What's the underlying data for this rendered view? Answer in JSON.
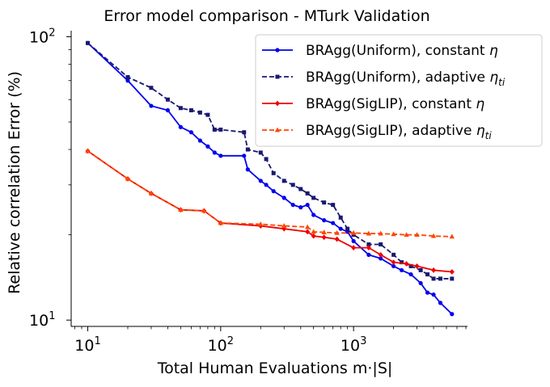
{
  "chart_data": {
    "type": "line",
    "title": "Error model comparison - MTurk Validation",
    "xlabel": "Total Human Evaluations m·|S|",
    "ylabel": "Relative correlation Error (%)",
    "xscale": "log",
    "yscale": "log",
    "xlim": [
      7.5,
      7200
    ],
    "ylim": [
      9.5,
      105
    ],
    "xticks": [
      {
        "value": 10,
        "base": "10",
        "exp": "1"
      },
      {
        "value": 100,
        "base": "10",
        "exp": "2"
      },
      {
        "value": 1000,
        "base": "10",
        "exp": "3"
      }
    ],
    "yticks": [
      {
        "value": 10,
        "base": "10",
        "exp": "1"
      },
      {
        "value": 100,
        "base": "10",
        "exp": "2"
      }
    ],
    "legend_position": "top-right",
    "series": [
      {
        "name_main": "BRAgg(Uniform), constant ",
        "name_math": "η",
        "name_sub": "",
        "color": "#0000ee",
        "dash": "solid",
        "marker": "circle",
        "x": [
          10,
          20,
          30,
          40,
          50,
          60,
          70,
          80,
          90,
          100,
          150,
          160,
          200,
          220,
          250,
          300,
          350,
          400,
          450,
          500,
          600,
          700,
          800,
          900,
          1000,
          1300,
          1600,
          2000,
          2300,
          2700,
          3200,
          3600,
          4000,
          4500,
          5500
        ],
        "y": [
          95,
          70,
          57,
          55,
          48,
          46,
          43,
          41,
          39,
          38,
          38,
          34,
          31,
          30,
          28.5,
          27,
          25.5,
          25,
          25.5,
          23.5,
          22.5,
          22,
          21,
          20.5,
          19,
          17,
          16.5,
          15.5,
          15,
          14.5,
          13.5,
          12.5,
          12.3,
          11.5,
          10.5
        ]
      },
      {
        "name_main": "BRAgg(Uniform), adaptive ",
        "name_math": "η",
        "name_sub": "ti",
        "color": "#191970",
        "dash": "dashed",
        "marker": "square",
        "x": [
          10,
          20,
          30,
          40,
          50,
          60,
          70,
          80,
          90,
          100,
          150,
          160,
          200,
          220,
          250,
          300,
          350,
          400,
          450,
          500,
          600,
          700,
          800,
          900,
          1000,
          1300,
          1600,
          2000,
          2300,
          2700,
          3200,
          3600,
          4000,
          4500,
          5500
        ],
        "y": [
          95,
          72,
          66,
          60,
          56,
          55,
          54,
          53,
          47,
          47,
          46,
          40,
          39,
          37,
          33,
          31,
          30,
          29,
          28,
          27,
          26,
          25.5,
          23,
          21,
          20,
          18.5,
          18.5,
          17,
          16,
          15.5,
          15,
          14.5,
          14,
          14,
          14
        ]
      },
      {
        "name_main": "BRAgg(SigLIP), constant ",
        "name_math": "η",
        "name_sub": "",
        "color": "#ee0000",
        "dash": "solid",
        "marker": "diamond",
        "x": [
          10,
          20,
          30,
          50,
          75,
          100,
          200,
          300,
          450,
          500,
          600,
          750,
          1000,
          1300,
          1600,
          2000,
          2500,
          3000,
          4000,
          5500
        ],
        "y": [
          39.5,
          31.5,
          28,
          24.5,
          24.3,
          22,
          21.5,
          21,
          20.5,
          19.8,
          19.6,
          19.3,
          18,
          18,
          17,
          16,
          15.8,
          15.5,
          15,
          14.8
        ]
      },
      {
        "name_main": "BRAgg(SigLIP), adaptive ",
        "name_math": "η",
        "name_sub": "ti",
        "color": "#ff4500",
        "dash": "dashed",
        "marker": "triangle",
        "x": [
          10,
          20,
          30,
          50,
          75,
          100,
          200,
          300,
          450,
          500,
          600,
          750,
          1000,
          1300,
          1600,
          2000,
          2500,
          3000,
          4000,
          5500
        ],
        "y": [
          39.5,
          31.5,
          28,
          24.5,
          24.3,
          22,
          21.8,
          21.5,
          21.3,
          20.5,
          20.4,
          20.3,
          20.3,
          20.2,
          20.2,
          20.1,
          20,
          20,
          19.8,
          19.7
        ]
      }
    ]
  }
}
